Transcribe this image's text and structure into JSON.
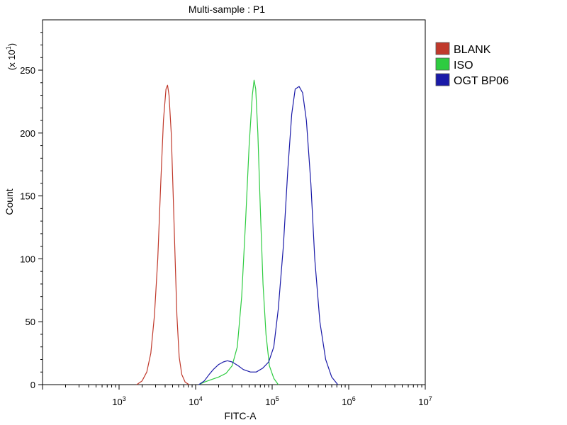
{
  "chart_data": {
    "type": "line",
    "title": "Multi-sample : P1",
    "xlabel": "FITC-A",
    "ylabel": "Count",
    "y_multiplier_label": "(x 10",
    "y_multiplier_exp": "1",
    "y_multiplier_close": ")",
    "x_scale": "log",
    "xlim": [
      100,
      10000000
    ],
    "ylim": [
      0,
      290
    ],
    "x_ticks": [
      {
        "base": "10",
        "exp": "3",
        "value": 1000
      },
      {
        "base": "10",
        "exp": "4",
        "value": 10000
      },
      {
        "base": "10",
        "exp": "5",
        "value": 100000
      },
      {
        "base": "10",
        "exp": "6",
        "value": 1000000
      },
      {
        "base": "10",
        "exp": "7",
        "value": 10000000
      }
    ],
    "y_ticks": [
      "0",
      "50",
      "100",
      "150",
      "200",
      "250"
    ],
    "y_tick_values": [
      0,
      50,
      100,
      150,
      200,
      250
    ],
    "grid": false,
    "legend_position": "top-right",
    "series": [
      {
        "name": "BLANK",
        "color": "#c0392b",
        "points": [
          [
            1700,
            0
          ],
          [
            2000,
            3
          ],
          [
            2300,
            10
          ],
          [
            2600,
            25
          ],
          [
            2900,
            55
          ],
          [
            3200,
            100
          ],
          [
            3500,
            160
          ],
          [
            3800,
            210
          ],
          [
            4100,
            235
          ],
          [
            4300,
            238
          ],
          [
            4500,
            230
          ],
          [
            4800,
            200
          ],
          [
            5100,
            150
          ],
          [
            5400,
            100
          ],
          [
            5700,
            55
          ],
          [
            6100,
            22
          ],
          [
            6600,
            8
          ],
          [
            7300,
            2
          ],
          [
            8200,
            0
          ]
        ]
      },
      {
        "name": "ISO",
        "color": "#2ecc40",
        "points": [
          [
            11000,
            0
          ],
          [
            13000,
            2
          ],
          [
            16000,
            4
          ],
          [
            20000,
            6
          ],
          [
            25000,
            9
          ],
          [
            30000,
            15
          ],
          [
            35000,
            30
          ],
          [
            40000,
            70
          ],
          [
            45000,
            130
          ],
          [
            50000,
            190
          ],
          [
            55000,
            230
          ],
          [
            58000,
            242
          ],
          [
            61000,
            235
          ],
          [
            65000,
            200
          ],
          [
            70000,
            140
          ],
          [
            76000,
            80
          ],
          [
            83000,
            40
          ],
          [
            92000,
            15
          ],
          [
            105000,
            5
          ],
          [
            120000,
            0
          ]
        ]
      },
      {
        "name": "OGT BP06",
        "color": "#1a1aa8",
        "points": [
          [
            11000,
            0
          ],
          [
            13000,
            3
          ],
          [
            15000,
            8
          ],
          [
            17000,
            12
          ],
          [
            20000,
            16
          ],
          [
            23000,
            18
          ],
          [
            26000,
            19
          ],
          [
            30000,
            18
          ],
          [
            36000,
            15
          ],
          [
            42000,
            12
          ],
          [
            52000,
            10
          ],
          [
            62000,
            10
          ],
          [
            75000,
            13
          ],
          [
            90000,
            18
          ],
          [
            105000,
            30
          ],
          [
            120000,
            60
          ],
          [
            140000,
            110
          ],
          [
            160000,
            170
          ],
          [
            180000,
            215
          ],
          [
            200000,
            235
          ],
          [
            225000,
            237
          ],
          [
            250000,
            232
          ],
          [
            280000,
            210
          ],
          [
            320000,
            160
          ],
          [
            360000,
            100
          ],
          [
            420000,
            50
          ],
          [
            500000,
            20
          ],
          [
            600000,
            6
          ],
          [
            720000,
            0
          ]
        ]
      }
    ]
  }
}
